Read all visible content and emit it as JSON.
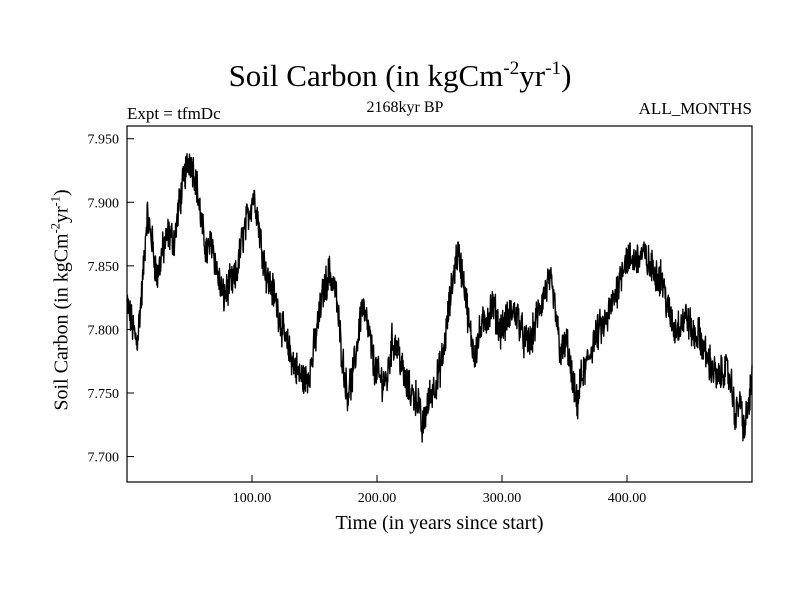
{
  "chart_data": {
    "type": "line",
    "title": {
      "main": "Soil Carbon (in kgCm",
      "exp1": "-2",
      "mid": "yr",
      "exp2": "-1",
      "end": ")"
    },
    "subtitle_left": "Expt = tfmDc",
    "subtitle_center": "2168kyr BP",
    "subtitle_right": "ALL_MONTHS",
    "xlabel": "Time (in years since start)",
    "ylabel": {
      "main": "Soil Carbon (in kgCm",
      "exp1": "-2",
      "mid": "yr",
      "exp2": "-1",
      "end": ")"
    },
    "xlim": [
      0,
      500
    ],
    "ylim": [
      7.68,
      7.96
    ],
    "x_ticks": [
      100,
      200,
      300,
      400
    ],
    "x_tick_labels": [
      "100.00",
      "200.00",
      "300.00",
      "400.00"
    ],
    "y_ticks": [
      7.7,
      7.75,
      7.8,
      7.85,
      7.9,
      7.95
    ],
    "y_tick_labels": [
      "7.700",
      "7.750",
      "7.800",
      "7.850",
      "7.900",
      "7.950"
    ],
    "line_color": "#000000",
    "series": [
      {
        "name": "Soil Carbon",
        "x": [
          0,
          5,
          8,
          12,
          16,
          20,
          24,
          28,
          33,
          38,
          42,
          47,
          50,
          55,
          60,
          64,
          68,
          72,
          77,
          82,
          87,
          92,
          97,
          101,
          103,
          107,
          112,
          117,
          122,
          127,
          133,
          137,
          143,
          147,
          152,
          157,
          162,
          167,
          172,
          176,
          180,
          183,
          188,
          193,
          198,
          203,
          208,
          212,
          217,
          222,
          227,
          233,
          236,
          239,
          243,
          248,
          253,
          258,
          263,
          265,
          270,
          274,
          278,
          283,
          288,
          293,
          298,
          303,
          308,
          313,
          318,
          323,
          328,
          333,
          338,
          342,
          347,
          352,
          356,
          360,
          363,
          367,
          373,
          378,
          383,
          388,
          393,
          398,
          403,
          408,
          413,
          418,
          423,
          428,
          433,
          438,
          443,
          448,
          453,
          458,
          463,
          468,
          473,
          478,
          483,
          487,
          490,
          494,
          497,
          500
        ],
        "y": [
          7.82,
          7.8,
          7.79,
          7.83,
          7.89,
          7.87,
          7.84,
          7.86,
          7.875,
          7.87,
          7.9,
          7.925,
          7.935,
          7.92,
          7.88,
          7.86,
          7.87,
          7.845,
          7.825,
          7.835,
          7.84,
          7.87,
          7.89,
          7.905,
          7.9,
          7.87,
          7.84,
          7.83,
          7.81,
          7.79,
          7.775,
          7.765,
          7.76,
          7.77,
          7.8,
          7.83,
          7.845,
          7.83,
          7.78,
          7.75,
          7.76,
          7.78,
          7.82,
          7.8,
          7.77,
          7.76,
          7.76,
          7.79,
          7.785,
          7.76,
          7.75,
          7.745,
          7.72,
          7.735,
          7.75,
          7.76,
          7.78,
          7.82,
          7.855,
          7.86,
          7.835,
          7.8,
          7.78,
          7.8,
          7.81,
          7.82,
          7.8,
          7.805,
          7.815,
          7.81,
          7.79,
          7.79,
          7.81,
          7.825,
          7.84,
          7.82,
          7.78,
          7.79,
          7.76,
          7.74,
          7.76,
          7.77,
          7.79,
          7.8,
          7.805,
          7.82,
          7.835,
          7.855,
          7.855,
          7.855,
          7.86,
          7.85,
          7.845,
          7.84,
          7.815,
          7.8,
          7.805,
          7.81,
          7.795,
          7.795,
          7.78,
          7.77,
          7.76,
          7.77,
          7.76,
          7.73,
          7.745,
          7.72,
          7.74,
          7.76
        ]
      }
    ]
  }
}
